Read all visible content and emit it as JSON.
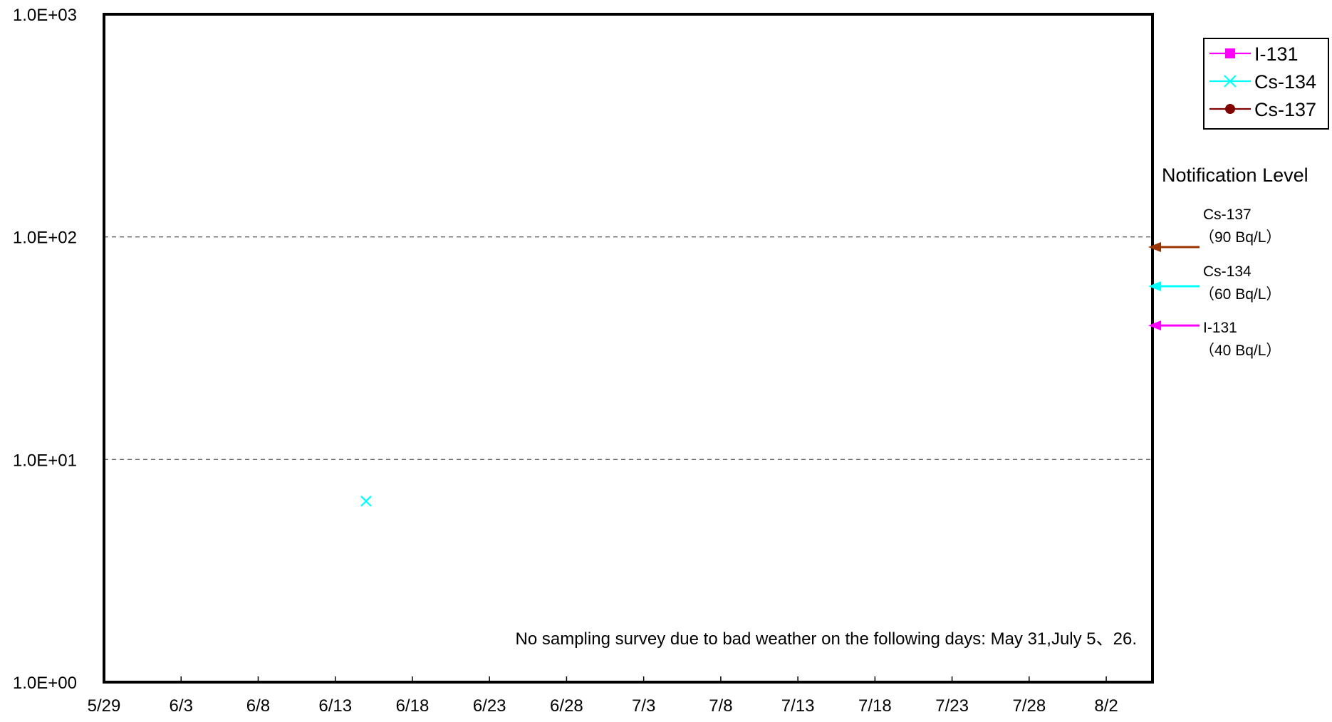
{
  "chart_data": {
    "type": "scatter",
    "title": "",
    "xlabel": "",
    "ylabel": "",
    "y_scale": "log",
    "ylim": [
      1,
      1000
    ],
    "y_ticks": [
      {
        "value": 1,
        "label": "1.0E+00"
      },
      {
        "value": 10,
        "label": "1.0E+01"
      },
      {
        "value": 100,
        "label": "1.0E+02"
      },
      {
        "value": 1000,
        "label": "1.0E+03"
      }
    ],
    "xlim": [
      "5/29",
      "8/5"
    ],
    "x_ticks": [
      "5/29",
      "6/3",
      "6/8",
      "6/13",
      "6/18",
      "6/23",
      "6/28",
      "7/3",
      "7/8",
      "7/13",
      "7/18",
      "7/23",
      "7/28",
      "8/2"
    ],
    "grid": {
      "horizontal_dashed": [
        10,
        100
      ]
    },
    "series": [
      {
        "name": "I-131",
        "color": "#ff00ff",
        "marker": "square",
        "points": []
      },
      {
        "name": "Cs-134",
        "color": "#00ffff",
        "marker": "x",
        "points": [
          {
            "x": "6/15",
            "y": 6.5
          }
        ]
      },
      {
        "name": "Cs-137",
        "color": "#800000",
        "marker": "circle",
        "points": []
      }
    ],
    "legend_position": "top-right",
    "note": "No sampling survey due to bad weather on the following days: May 31,July 5、26.",
    "notification": {
      "title": "Notification Level",
      "levels": [
        {
          "nuclide": "Cs-137",
          "value_label": "（90  Bq/L）",
          "value": 90,
          "color": "#993300"
        },
        {
          "nuclide": "Cs-134",
          "value_label": "（60  Bq/L）",
          "value": 60,
          "color": "#00ffff"
        },
        {
          "nuclide": "I-131",
          "value_label": "（40  Bq/L）",
          "value": 40,
          "color": "#ff00ff"
        }
      ]
    }
  }
}
